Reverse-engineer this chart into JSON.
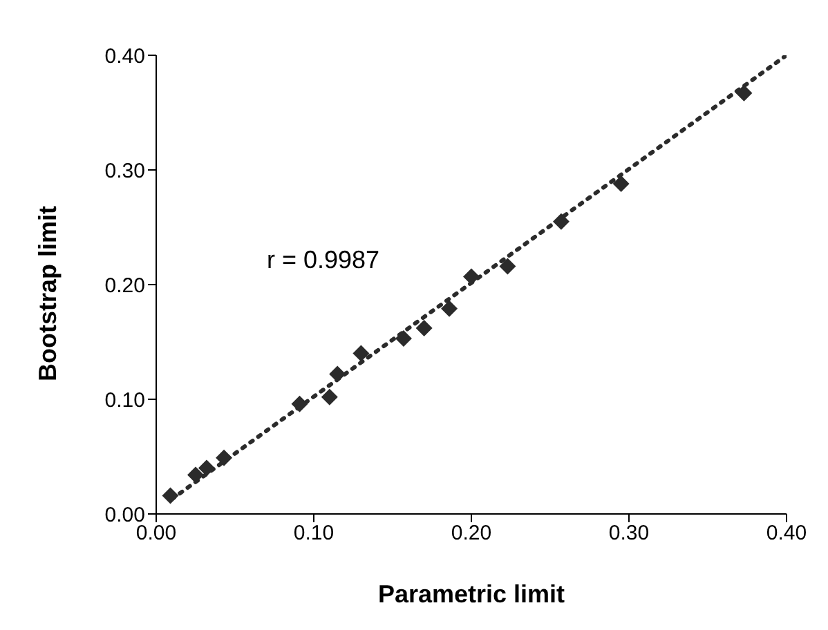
{
  "chart_data": {
    "type": "scatter",
    "xlabel": "Parametric limit",
    "ylabel": "Bootstrap limit",
    "annotations": [
      "r = 0.9987"
    ],
    "xlim": [
      0,
      0.4
    ],
    "xticks": [
      {
        "value": 0,
        "label": "0.00"
      },
      {
        "value": 0.1,
        "label": "0.10"
      },
      {
        "value": 0.2,
        "label": "0.20"
      },
      {
        "value": 0.3,
        "label": "0.30"
      },
      {
        "value": 0.4,
        "label": "0.40"
      }
    ],
    "ylim": [
      0,
      0.4
    ],
    "yticks": [
      {
        "value": 0,
        "label": "0.00"
      },
      {
        "value": 0.1,
        "label": "0.10"
      },
      {
        "value": 0.2,
        "label": "0.20"
      },
      {
        "value": 0.3,
        "label": "0.30"
      },
      {
        "value": 0.4,
        "label": "0.40"
      }
    ],
    "marker": "diamond",
    "series": [
      {
        "color": "#2b2b2b",
        "x": [
          0.009,
          0.025,
          0.032,
          0.043,
          0.091,
          0.11,
          0.115,
          0.13,
          0.157,
          0.17,
          0.186,
          0.2,
          0.223,
          0.257,
          0.295,
          0.373
        ],
        "values": [
          0.016,
          0.034,
          0.04,
          0.049,
          0.096,
          0.102,
          0.122,
          0.14,
          0.153,
          0.162,
          0.179,
          0.207,
          0.216,
          0.255,
          0.288,
          0.367
        ]
      },
      {
        "type": "line",
        "color": "#2b2b2b",
        "marker": "none",
        "line_style": "dotted",
        "x": [
          0.01,
          0.4
        ],
        "values": [
          0.013,
          0.4
        ]
      }
    ]
  }
}
